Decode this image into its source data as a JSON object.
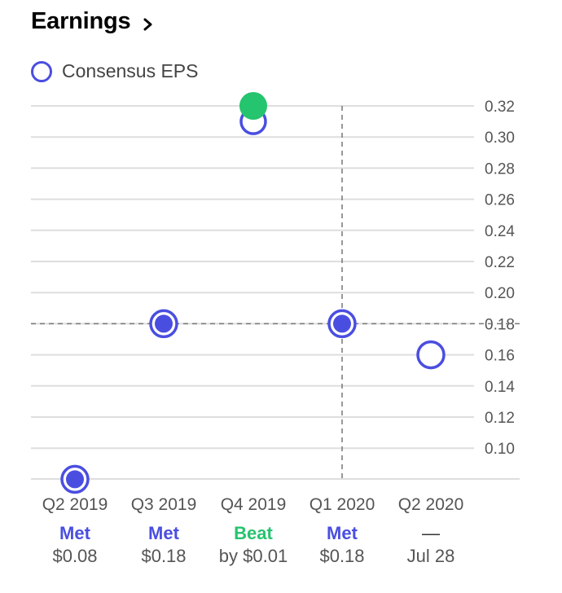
{
  "header": {
    "title": "Earnings",
    "chevron_icon": "chevron-right-icon"
  },
  "legend": {
    "label": "Consensus EPS",
    "marker_color": "#4a4ee0"
  },
  "colors": {
    "consensus": "#4a4ee0",
    "met_fill": "#4a4ee0",
    "beat": "#25c46e",
    "status_met": "#4a4ee0",
    "status_beat": "#25c46e"
  },
  "chart_data": {
    "type": "scatter",
    "categories": [
      "Q2 2019",
      "Q3 2019",
      "Q4 2019",
      "Q1 2020",
      "Q2 2020"
    ],
    "series": [
      {
        "name": "Consensus EPS",
        "values": [
          0.08,
          0.18,
          0.31,
          0.18,
          0.16
        ]
      },
      {
        "values": [
          0.08,
          0.18,
          0.32,
          0.18,
          null
        ]
      }
    ],
    "y_ticks": [
      "0.32",
      "0.30",
      "0.28",
      "0.26",
      "0.24",
      "0.22",
      "0.20",
      "0.18",
      "0.16",
      "0.14",
      "0.12",
      "0.10"
    ],
    "ylim": [
      0.08,
      0.32
    ],
    "crosshair": {
      "category": "Q1 2020",
      "y": 0.18
    },
    "y_axis_position": "right",
    "grid": true
  },
  "quarters": [
    {
      "status": "Met",
      "value": "$0.08",
      "status_type": "met"
    },
    {
      "status": "Met",
      "value": "$0.18",
      "status_type": "met"
    },
    {
      "status": "Beat",
      "value": "by $0.01",
      "status_type": "beat"
    },
    {
      "status": "Met",
      "value": "$0.18",
      "status_type": "met"
    },
    {
      "status": "—",
      "value": "Jul 28",
      "status_type": "upcoming"
    }
  ]
}
